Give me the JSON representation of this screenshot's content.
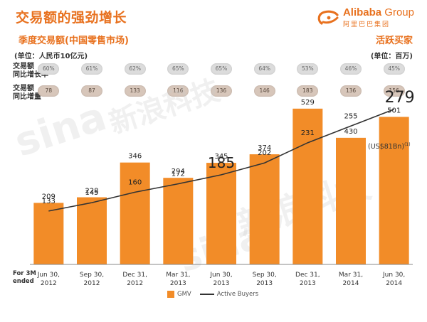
{
  "header": {
    "title": "交易额的强劲增长",
    "subtitle": "季度交易额(中国零售市场)",
    "right_label": "活跃买家",
    "unit_left": "(单位：人民币10亿元)",
    "unit_right": "(单位：百万)"
  },
  "logo": {
    "text": "Alibaba",
    "group": "Group",
    "cn": "阿里巴巴集团"
  },
  "rows": {
    "growth_rate_label_1": "交易额",
    "growth_rate_label_2": "同比增长率",
    "growth_rate": [
      "60%",
      "61%",
      "62%",
      "65%",
      "65%",
      "64%",
      "53%",
      "46%",
      "45%"
    ],
    "growth_amount_label_1": "交易额",
    "growth_amount_label_2": "同比增量",
    "growth_amount": [
      "78",
      "87",
      "133",
      "116",
      "136",
      "146",
      "183",
      "136",
      "156"
    ]
  },
  "axis_note": {
    "line1": "For 3M",
    "line2": "ended"
  },
  "annotation": {
    "usd": "(US$81Bn)",
    "sup": "(1)"
  },
  "watermark": {
    "brand": "sina",
    "cn": "新浪科技"
  },
  "colors": {
    "bar": "#f28c28",
    "line": "#333333",
    "accent": "#e8711e"
  },
  "chart_data": {
    "type": "bar",
    "categories": [
      [
        "Jun 30,",
        "2012"
      ],
      [
        "Sep 30,",
        "2012"
      ],
      [
        "Dec 31,",
        "2012"
      ],
      [
        "Mar 31,",
        "2013"
      ],
      [
        "Jun 30,",
        "2013"
      ],
      [
        "Sep 30,",
        "2013"
      ],
      [
        "Dec 31,",
        "2013"
      ],
      [
        "Mar 31,",
        "2014"
      ],
      [
        "Jun 30,",
        "2014"
      ]
    ],
    "series": [
      {
        "name": "GMV",
        "type": "bar",
        "values": [
          209,
          228,
          346,
          294,
          345,
          374,
          529,
          430,
          501
        ]
      },
      {
        "name": "Active Buyers",
        "type": "line",
        "values": [
          133,
          145,
          160,
          172,
          185,
          202,
          231,
          255,
          279
        ]
      }
    ],
    "bar_ylim": [
      0,
      560
    ],
    "line_ylim": [
      40,
      290
    ],
    "legend": "bottom"
  }
}
